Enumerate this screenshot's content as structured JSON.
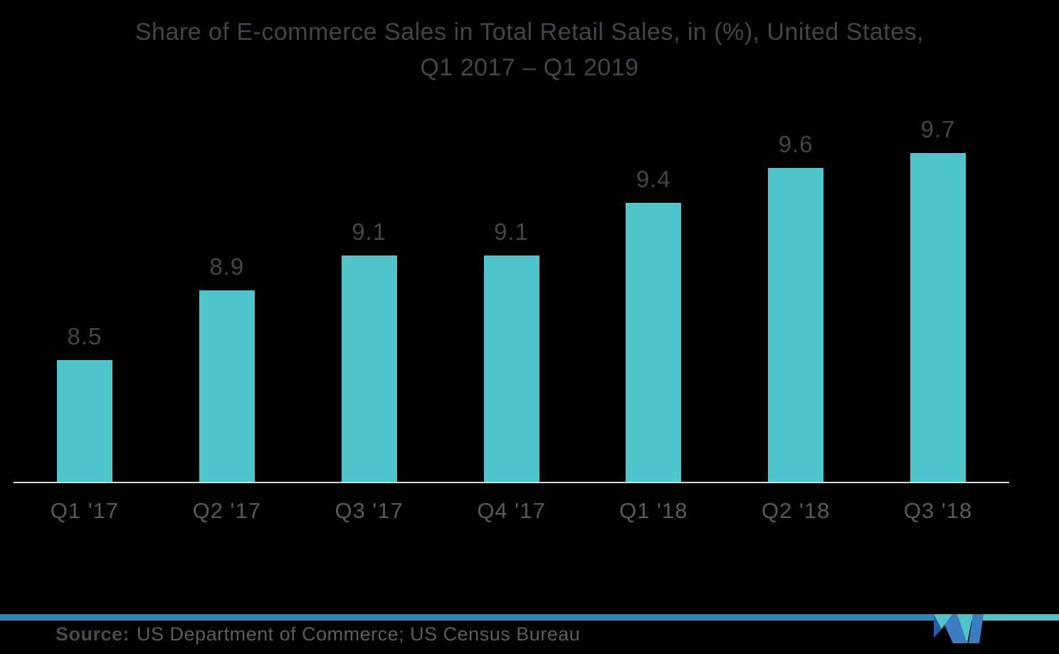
{
  "header": {
    "line1": "Share of E-commerce Sales in Total Retail Sales, in (%), United States,",
    "line2": "Q1 2017 – Q1 2019"
  },
  "chart_data": {
    "type": "bar",
    "title": "Share of E-commerce Sales in Total Retail Sales, in (%), United States, Q1 2017 – Q1 2019",
    "categories": [
      "Q1 '17",
      "Q2 '17",
      "Q3 '17",
      "Q4 '17",
      "Q1 '18",
      "Q2 '18",
      "Q3 '18"
    ],
    "values": [
      8.5,
      8.9,
      9.1,
      9.1,
      9.4,
      9.6,
      9.7
    ],
    "value_labels_shown": true,
    "xlabel": "",
    "ylabel": "",
    "ylim": [
      7.8,
      9.9
    ],
    "grid": false,
    "legend": "none",
    "bar_color": "#4DC5CB",
    "value_label_color": "#454547",
    "category_label_color": "#5A5A5C",
    "axis_line_color": "#D8D8D8",
    "background_color": "#000000",
    "title_color": "#454547"
  },
  "footer": {
    "source_label": "Source:",
    "source_text": "US Department of Commerce; US Census Bureau",
    "rule_color_left": "#2D86BA",
    "rule_color_right": "#4DC5CB",
    "logo_name": "mordor-intelligence-logo",
    "logo_colors": {
      "blue": "#3A7EC1",
      "teal": "#4DC5CB",
      "navy": "#2C5FA6"
    }
  }
}
